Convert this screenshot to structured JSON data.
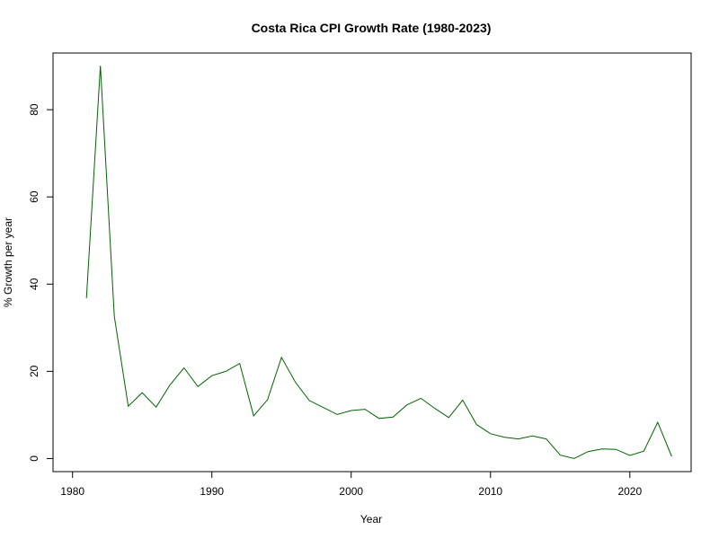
{
  "chart_data": {
    "type": "line",
    "title": "Costa Rica CPI Growth Rate (1980-2023)",
    "xlabel": "Year",
    "ylabel": "% Growth per year",
    "xlim": [
      1978.6,
      2024.4
    ],
    "ylim": [
      -3.0,
      93.0
    ],
    "x_ticks": [
      1980,
      1990,
      2000,
      2010,
      2020
    ],
    "y_ticks": [
      0,
      20,
      40,
      60,
      80
    ],
    "line_color": "#006400",
    "grid": false,
    "legend": "none",
    "series": [
      {
        "x": [
          1981,
          1982,
          1983,
          1984,
          1985,
          1986,
          1987,
          1988,
          1989,
          1990,
          1991,
          1992,
          1993,
          1994,
          1995,
          1996,
          1997,
          1998,
          1999,
          2000,
          2001,
          2002,
          2003,
          2004,
          2005,
          2006,
          2007,
          2008,
          2009,
          2010,
          2011,
          2012,
          2013,
          2014,
          2015,
          2016,
          2017,
          2018,
          2019,
          2020,
          2021,
          2022,
          2023
        ],
        "values": [
          36.8,
          90.1,
          32.6,
          12.0,
          15.1,
          11.8,
          16.9,
          20.8,
          16.5,
          19.0,
          20.0,
          21.8,
          9.8,
          13.5,
          23.2,
          17.5,
          13.3,
          11.7,
          10.1,
          11.0,
          11.3,
          9.2,
          9.5,
          12.3,
          13.8,
          11.5,
          9.4,
          13.4,
          7.8,
          5.7,
          4.9,
          4.5,
          5.2,
          4.5,
          0.8,
          0.0,
          1.6,
          2.2,
          2.1,
          0.7,
          1.7,
          8.3,
          0.5
        ]
      }
    ]
  }
}
